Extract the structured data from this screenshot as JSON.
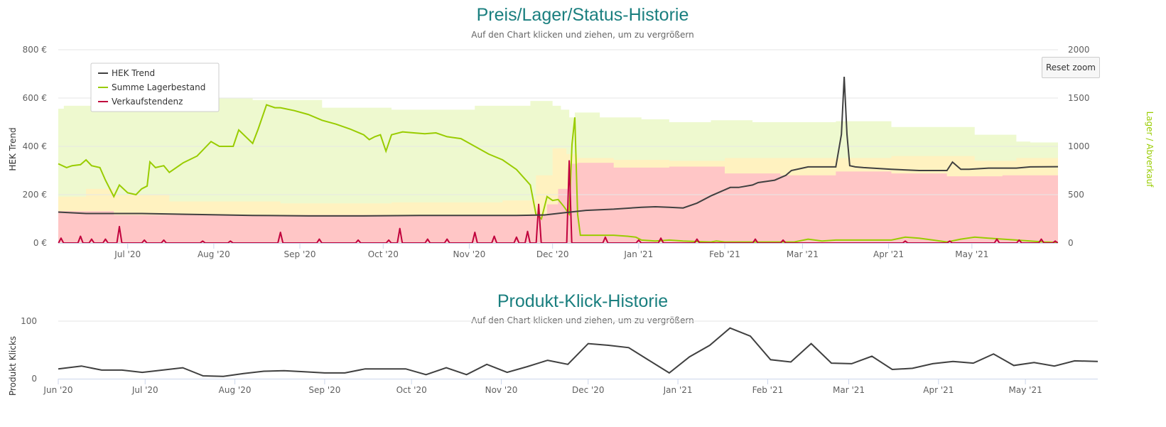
{
  "colors": {
    "hek_trend": "#404040",
    "lager": "#99cc00",
    "verkauf": "#c0003c",
    "band_green": "#eef9cf",
    "band_yellow": "#fff2c0",
    "band_red": "#ffc6c6",
    "title": "#1a7f7f",
    "clicks": "#404040"
  },
  "reset_zoom_label": "Reset zoom",
  "chart_data": [
    {
      "type": "line",
      "title": "Preis/Lager/Status-Historie",
      "subtitle": "Auf den Chart klicken und ziehen, um zu vergrößern",
      "ylabel": "HEK Trend",
      "ylabel_right": "Lager / Abverkauf",
      "ylim": [
        0,
        800
      ],
      "ylim_right": [
        0,
        2000
      ],
      "yticks": [
        "0 €",
        "200 €",
        "400 €",
        "600 €",
        "800 €"
      ],
      "yticks_right": [
        "0",
        "500",
        "1000",
        "1500",
        "2000"
      ],
      "x_day_range": [
        0,
        360
      ],
      "xticks": [
        {
          "day": 25,
          "label": "Jul '20"
        },
        {
          "day": 56,
          "label": "Aug '20"
        },
        {
          "day": 87,
          "label": "Sep '20"
        },
        {
          "day": 117,
          "label": "Oct '20"
        },
        {
          "day": 148,
          "label": "Nov '20"
        },
        {
          "day": 178,
          "label": "Dec '20"
        },
        {
          "day": 209,
          "label": "Jan '21"
        },
        {
          "day": 240,
          "label": "Feb '21"
        },
        {
          "day": 268,
          "label": "Mar '21"
        },
        {
          "day": 299,
          "label": "Apr '21"
        },
        {
          "day": 329,
          "label": "May '21"
        }
      ],
      "legend": [
        "HEK Trend",
        "Summe Lagerbestand",
        "Verkaufstendenz"
      ],
      "legend_position": "top-left",
      "bands": [
        {
          "name": "green",
          "days": [
            0,
            2,
            14,
            44,
            70,
            95,
            120,
            150,
            170,
            178,
            181,
            184,
            186,
            195,
            210,
            220,
            235,
            250,
            265,
            280,
            300,
            330,
            345,
            350,
            360
          ],
          "values": [
            1390,
            1420,
            1480,
            1500,
            1480,
            1400,
            1380,
            1420,
            1470,
            1420,
            1380,
            1300,
            1350,
            1300,
            1280,
            1250,
            1270,
            1250,
            1250,
            1260,
            1200,
            1120,
            1050,
            1040,
            1040
          ]
        },
        {
          "name": "yellow",
          "days": [
            0,
            10,
            20,
            40,
            80,
            120,
            160,
            172,
            178,
            183,
            187,
            200,
            220,
            240,
            270,
            300,
            330,
            345,
            360
          ],
          "values": [
            480,
            560,
            500,
            430,
            410,
            420,
            440,
            700,
            980,
            920,
            880,
            860,
            850,
            880,
            880,
            900,
            850,
            880,
            880
          ]
        },
        {
          "name": "red",
          "days": [
            0,
            20,
            60,
            100,
            140,
            170,
            176,
            180,
            184,
            187,
            200,
            220,
            240,
            260,
            280,
            300,
            320,
            340,
            360
          ],
          "values": [
            330,
            290,
            290,
            290,
            290,
            300,
            400,
            560,
            820,
            830,
            780,
            790,
            720,
            700,
            740,
            720,
            690,
            700,
            700
          ]
        }
      ],
      "series": [
        {
          "name": "HEK Trend",
          "axis": "left",
          "days": [
            0,
            10,
            30,
            50,
            70,
            90,
            110,
            130,
            150,
            165,
            175,
            182,
            190,
            200,
            210,
            215,
            220,
            225,
            230,
            235,
            240,
            242,
            245,
            250,
            252,
            258,
            262,
            264,
            268,
            270,
            274,
            280,
            282,
            283,
            284,
            285,
            287,
            290,
            300,
            310,
            320,
            322,
            325,
            328,
            335,
            345,
            350,
            360
          ],
          "values": [
            128,
            122,
            122,
            118,
            114,
            112,
            112,
            114,
            114,
            114,
            116,
            125,
            135,
            140,
            148,
            150,
            148,
            145,
            165,
            195,
            220,
            230,
            230,
            240,
            250,
            260,
            280,
            300,
            310,
            315,
            315,
            315,
            450,
            688,
            450,
            320,
            315,
            312,
            305,
            300,
            300,
            335,
            305,
            305,
            310,
            310,
            315,
            316
          ]
        },
        {
          "name": "Summe Lagerbestand",
          "axis": "right",
          "days": [
            0,
            3,
            5,
            8,
            10,
            12,
            15,
            17,
            20,
            22,
            25,
            28,
            30,
            32,
            33,
            35,
            38,
            40,
            45,
            50,
            55,
            58,
            60,
            63,
            65,
            70,
            72,
            75,
            78,
            80,
            85,
            90,
            95,
            100,
            105,
            110,
            112,
            114,
            116,
            118,
            120,
            124,
            128,
            132,
            136,
            140,
            145,
            150,
            155,
            160,
            165,
            170,
            172,
            174,
            176,
            178,
            180,
            182,
            184,
            185,
            186,
            187,
            188,
            190,
            195,
            200,
            205,
            208,
            210,
            215,
            220,
            225,
            230,
            235,
            237,
            240,
            245,
            255,
            265,
            270,
            275,
            280,
            290,
            300,
            305,
            310,
            315,
            320,
            325,
            330,
            335,
            345,
            355,
            360
          ],
          "values": [
            820,
            780,
            800,
            810,
            860,
            800,
            780,
            650,
            480,
            600,
            520,
            500,
            560,
            590,
            840,
            780,
            800,
            730,
            830,
            900,
            1050,
            1000,
            1000,
            1000,
            1170,
            1030,
            1180,
            1430,
            1400,
            1400,
            1370,
            1330,
            1270,
            1230,
            1180,
            1120,
            1070,
            1100,
            1120,
            950,
            1120,
            1150,
            1140,
            1130,
            1140,
            1100,
            1080,
            1000,
            920,
            860,
            760,
            600,
            300,
            250,
            480,
            440,
            450,
            380,
            300,
            1020,
            1300,
            300,
            80,
            80,
            80,
            80,
            70,
            60,
            30,
            20,
            30,
            20,
            15,
            10,
            20,
            10,
            10,
            10,
            10,
            40,
            20,
            30,
            30,
            30,
            60,
            50,
            30,
            10,
            40,
            60,
            50,
            30,
            10,
            5
          ]
        },
        {
          "name": "Verkaufstendenz",
          "axis": "left",
          "scale": "right",
          "spiky": true,
          "spikes": [
            [
              1,
              50
            ],
            [
              8,
              70
            ],
            [
              12,
              40
            ],
            [
              17,
              40
            ],
            [
              22,
              170
            ],
            [
              31,
              30
            ],
            [
              38,
              30
            ],
            [
              52,
              20
            ],
            [
              62,
              20
            ],
            [
              80,
              110
            ],
            [
              94,
              40
            ],
            [
              108,
              30
            ],
            [
              119,
              30
            ],
            [
              123,
              150
            ],
            [
              133,
              40
            ],
            [
              140,
              40
            ],
            [
              150,
              110
            ],
            [
              157,
              70
            ],
            [
              165,
              60
            ],
            [
              169,
              120
            ],
            [
              173,
              400
            ],
            [
              184,
              850
            ],
            [
              197,
              60
            ],
            [
              209,
              30
            ],
            [
              217,
              50
            ],
            [
              230,
              40
            ],
            [
              251,
              40
            ],
            [
              261,
              30
            ],
            [
              305,
              20
            ],
            [
              321,
              20
            ],
            [
              338,
              40
            ],
            [
              346,
              30
            ],
            [
              354,
              40
            ],
            [
              359,
              20
            ]
          ]
        }
      ]
    },
    {
      "type": "line",
      "title": "Produkt-Klick-Historie",
      "subtitle": "Auf den Chart klicken und ziehen, um zu vergrößern",
      "ylabel": "Produkt Klicks",
      "ylim": [
        0,
        100
      ],
      "yticks": [
        "0",
        "100"
      ],
      "x_day_range": [
        0,
        359
      ],
      "xticks": [
        {
          "day": 0,
          "label": "Jun '20"
        },
        {
          "day": 30,
          "label": "Jul '20"
        },
        {
          "day": 61,
          "label": "Aug '20"
        },
        {
          "day": 92,
          "label": "Sep '20"
        },
        {
          "day": 122,
          "label": "Oct '20"
        },
        {
          "day": 153,
          "label": "Nov '20"
        },
        {
          "day": 183,
          "label": "Dec '20"
        },
        {
          "day": 214,
          "label": "Jan '21"
        },
        {
          "day": 245,
          "label": "Feb '21"
        },
        {
          "day": 273,
          "label": "Mar '21"
        },
        {
          "day": 304,
          "label": "Apr '21"
        },
        {
          "day": 334,
          "label": "May '21"
        }
      ],
      "series": [
        {
          "name": "Produkt Klicks",
          "days": [
            0,
            8,
            15,
            22,
            29,
            36,
            43,
            50,
            57,
            64,
            71,
            78,
            85,
            92,
            99,
            106,
            113,
            120,
            127,
            134,
            141,
            148,
            155,
            162,
            169,
            176,
            183,
            190,
            197,
            204,
            211,
            218,
            225,
            232,
            239,
            246,
            253,
            260,
            267,
            274,
            281,
            288,
            295,
            302,
            309,
            316,
            323,
            330,
            337,
            344,
            351,
            359
          ],
          "values": [
            17,
            22,
            15,
            15,
            11,
            15,
            19,
            5,
            4,
            9,
            13,
            14,
            12,
            10,
            10,
            17,
            17,
            17,
            7,
            19,
            7,
            25,
            11,
            21,
            32,
            25,
            61,
            58,
            54,
            32,
            10,
            38,
            58,
            88,
            74,
            33,
            29,
            61,
            27,
            26,
            39,
            16,
            18,
            26,
            30,
            27,
            43,
            23,
            28,
            22,
            31,
            30
          ]
        }
      ]
    }
  ]
}
